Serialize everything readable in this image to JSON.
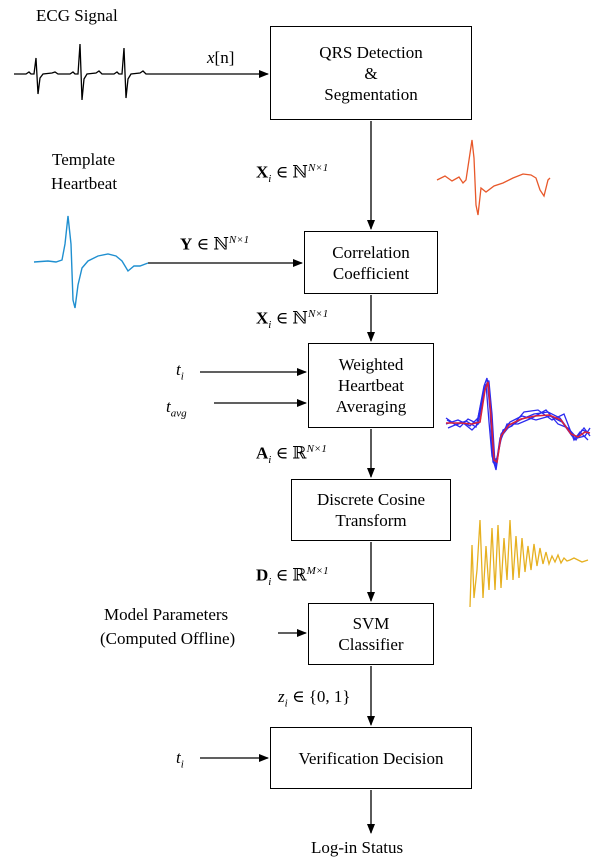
{
  "labels": {
    "ecg_signal": "ECG Signal",
    "template_heartbeat_line1": "Template",
    "template_heartbeat_line2": "Heartbeat",
    "model_params_line1": "Model Parameters",
    "model_params_line2": "(Computed Offline)",
    "login_status": "Log-in Status"
  },
  "boxes": {
    "qrs": [
      "QRS Detection",
      "&",
      "Segmentation"
    ],
    "corr": [
      "Correlation",
      "Coefficient"
    ],
    "weighted": [
      "Weighted",
      "Heartbeat",
      "Averaging"
    ],
    "dct": [
      "Discrete Cosine",
      "Transform"
    ],
    "svm": [
      "SVM",
      "Classifier"
    ],
    "verify": [
      "Verification Decision"
    ]
  },
  "math": {
    "xn": {
      "var": "x",
      "idx": "[n]"
    },
    "xi_1": {
      "var": "X",
      "sub": "i",
      "rel": " ∈ ℕ",
      "sup": "N×1"
    },
    "y": {
      "var": "Y",
      "rel": " ∈ ℕ",
      "sup": "N×1"
    },
    "xi_2": {
      "var": "X",
      "sub": "i",
      "rel": " ∈ ℕ",
      "sup": "N×1"
    },
    "ti_1": {
      "var": "t",
      "sub": "i"
    },
    "tavg": {
      "var": "t",
      "sub": "avg"
    },
    "ai": {
      "var": "A",
      "sub": "i",
      "rel": " ∈ ℝ",
      "sup": "N×1"
    },
    "di": {
      "var": "D",
      "sub": "i",
      "rel": " ∈ ℝ",
      "sup": "M×1"
    },
    "zi": {
      "var": "z",
      "sub": "i",
      "rel": " ∈ {0, 1}"
    },
    "ti_2": {
      "var": "t",
      "sub": "i"
    }
  },
  "colors": {
    "segment_orange": "#e8582a",
    "template_blue": "#1f8fd0",
    "avg_blue": "#2a2af0",
    "avg_red": "#d8203c",
    "dct_yellow": "#e6b020"
  }
}
